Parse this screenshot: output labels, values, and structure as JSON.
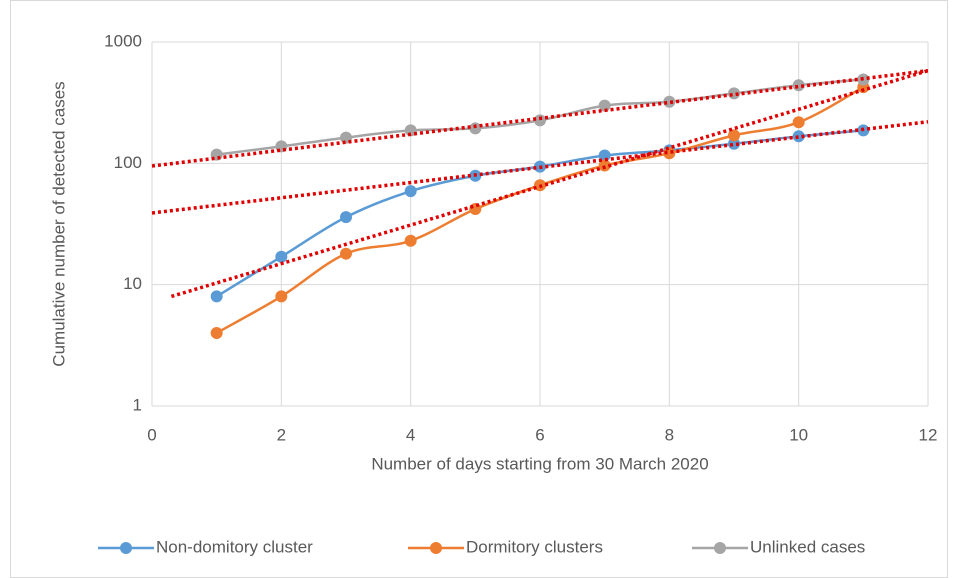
{
  "chart_data": {
    "type": "line",
    "x_label": "Number of days starting from 30 March 2020",
    "y_label": "Cumulative  number of detected cases",
    "x": [
      1,
      2,
      3,
      4,
      5,
      6,
      7,
      8,
      9,
      10,
      11
    ],
    "series": [
      {
        "name": "Non-domitory cluster",
        "color": "#5b9bd5",
        "values": [
          8,
          17,
          36,
          59,
          79,
          94,
          116,
          128,
          145,
          167,
          187
        ]
      },
      {
        "name": "Dormitory clusters",
        "color": "#ed7d31",
        "values": [
          4,
          8,
          18,
          23,
          42,
          66,
          96,
          121,
          170,
          218,
          425
        ]
      },
      {
        "name": "Unlinked cases",
        "color": "#a5a5a5",
        "values": [
          118,
          138,
          163,
          187,
          194,
          226,
          299,
          322,
          377,
          440,
          491
        ]
      }
    ],
    "trendlines": [
      {
        "color": "#e00000",
        "x": [
          0,
          12
        ],
        "values": [
          39,
          220
        ]
      },
      {
        "color": "#e00000",
        "x": [
          0.3,
          12
        ],
        "values": [
          8,
          580
        ]
      },
      {
        "color": "#e00000",
        "x": [
          0,
          12
        ],
        "values": [
          95,
          580
        ]
      }
    ],
    "xlim": [
      0,
      12
    ],
    "xticks": [
      0,
      2,
      4,
      6,
      8,
      10,
      12
    ],
    "ylim": [
      1,
      1000
    ],
    "yticks": [
      1,
      10,
      100,
      1000
    ],
    "log_y": true,
    "grid": true,
    "legend": "bottom"
  }
}
